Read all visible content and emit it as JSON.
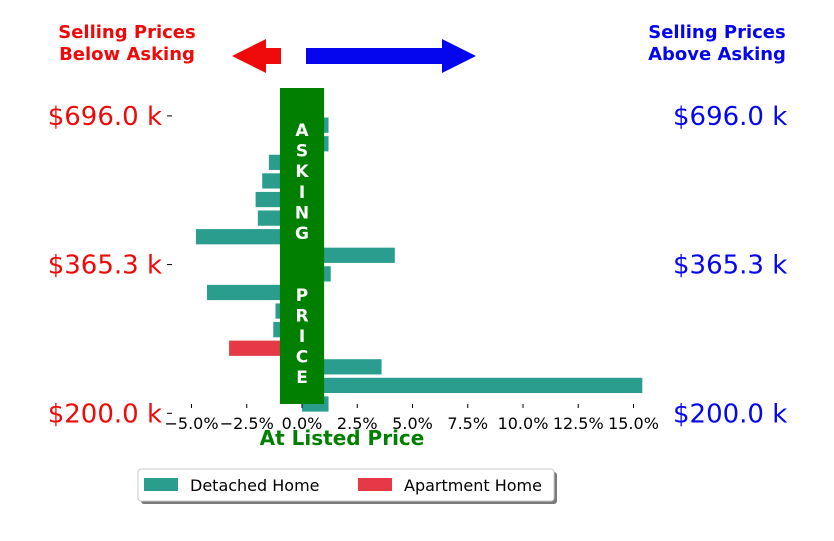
{
  "header": {
    "below_line1": "Selling Prices",
    "below_line2": "Below Asking",
    "above_line1": "Selling Prices",
    "above_line2": "Above Asking"
  },
  "colors": {
    "below": "#ee0a0a",
    "above": "#0505ee",
    "asking": "#007f00",
    "detached": "#2a9d8f",
    "apartment": "#e63946"
  },
  "chart_data": {
    "type": "bar",
    "orientation": "horizontal",
    "xlabel": "At Listed Price",
    "xlim": [
      -6.2,
      16.2
    ],
    "ylim": [
      0.5,
      17.5
    ],
    "x_ticks": [
      -5,
      -2.5,
      0,
      2.5,
      5,
      7.5,
      10,
      12.5,
      15
    ],
    "x_tick_labels": [
      "−5.0%",
      "−2.5%",
      "0.0%",
      "2.5%",
      "5.0%",
      "7.5%",
      "10.0%",
      "12.5%",
      "15.0%"
    ],
    "y_tick_labels_left": [
      "$696.0 k",
      "$365.3 k",
      "$200.0 k"
    ],
    "y_tick_labels_right": [
      "$696.0 k",
      "$365.3 k",
      "$200.0 k"
    ],
    "y_tick_rows": [
      16,
      8,
      0
    ],
    "asking_band": {
      "label": "ASKING  PRICE",
      "x_range": [
        -1.0,
        1.0
      ]
    },
    "series": [
      {
        "name": "Detached Home",
        "bars": [
          {
            "row": 0.5,
            "value": 1.2
          },
          {
            "row": 1.5,
            "value": 15.4
          },
          {
            "row": 2.5,
            "value": 3.6
          },
          {
            "row": 4.5,
            "value": -1.3
          },
          {
            "row": 5.5,
            "value": -1.2
          },
          {
            "row": 6.5,
            "value": -4.3
          },
          {
            "row": 7.5,
            "value": 1.3
          },
          {
            "row": 8.5,
            "value": 4.2
          },
          {
            "row": 9.5,
            "value": -4.8
          },
          {
            "row": 10.5,
            "value": -2.0
          },
          {
            "row": 11.5,
            "value": -2.1
          },
          {
            "row": 12.5,
            "value": -1.8
          },
          {
            "row": 13.5,
            "value": -1.5
          },
          {
            "row": 14.5,
            "value": 1.2
          },
          {
            "row": 15.5,
            "value": 1.2
          }
        ]
      },
      {
        "name": "Apartment Home",
        "bars": [
          {
            "row": 3.5,
            "value": -3.3
          }
        ]
      }
    ],
    "legend": {
      "placement": "bottom",
      "entries": [
        "Detached Home",
        "Apartment Home"
      ]
    }
  }
}
